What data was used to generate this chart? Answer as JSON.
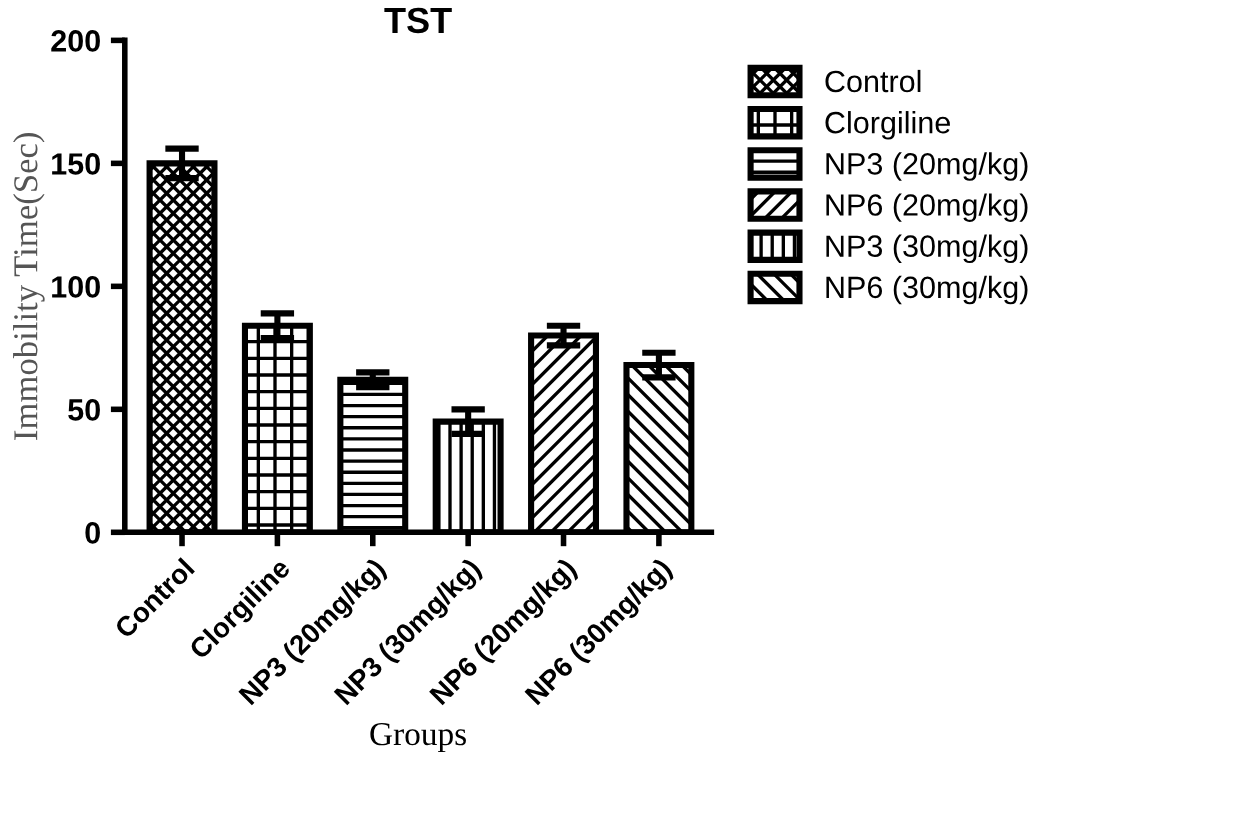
{
  "chart_data": {
    "type": "bar",
    "title": "TST",
    "xlabel": "Groups",
    "ylabel": "Immobility Time(Sec)",
    "categories": [
      "Control",
      "Clorgiline",
      "NP3 (20mg/kg)",
      "NP3 (30mg/kg)",
      "NP6 (20mg/kg)",
      "NP6 (30mg/kg)"
    ],
    "series": [
      {
        "name": "Control",
        "color": "#000000",
        "values": [
          150,
          null,
          null,
          null,
          null,
          null
        ],
        "errors": [
          6,
          null,
          null,
          null,
          null,
          null
        ]
      },
      {
        "name": "Clorgiline",
        "color": "#000000",
        "values": [
          null,
          84,
          null,
          null,
          null,
          null
        ],
        "errors": [
          null,
          5,
          null,
          null,
          null,
          null
        ]
      },
      {
        "name": "NP3 (20mg/kg)",
        "color": "#000000",
        "values": [
          null,
          null,
          62,
          null,
          null,
          null
        ],
        "errors": [
          null,
          null,
          3,
          null,
          null,
          null
        ]
      },
      {
        "name": "NP6 (20mg/kg)",
        "color": "#000000",
        "values": [
          null,
          null,
          null,
          null,
          80,
          null
        ],
        "errors": [
          null,
          null,
          null,
          null,
          4,
          null
        ]
      },
      {
        "name": "NP3 (30mg/kg)",
        "color": "#000000",
        "values": [
          null,
          null,
          null,
          45,
          null,
          null
        ],
        "errors": [
          null,
          null,
          null,
          5,
          null,
          null
        ]
      },
      {
        "name": "NP6 (30mg/kg)",
        "color": "#000000",
        "values": [
          null,
          null,
          null,
          null,
          null,
          68
        ],
        "errors": [
          null,
          null,
          null,
          null,
          null,
          5
        ]
      }
    ],
    "ylim": [
      0,
      200
    ],
    "yticks": [
      0,
      50,
      100,
      150,
      200
    ],
    "grid": false,
    "legend": "top right"
  }
}
